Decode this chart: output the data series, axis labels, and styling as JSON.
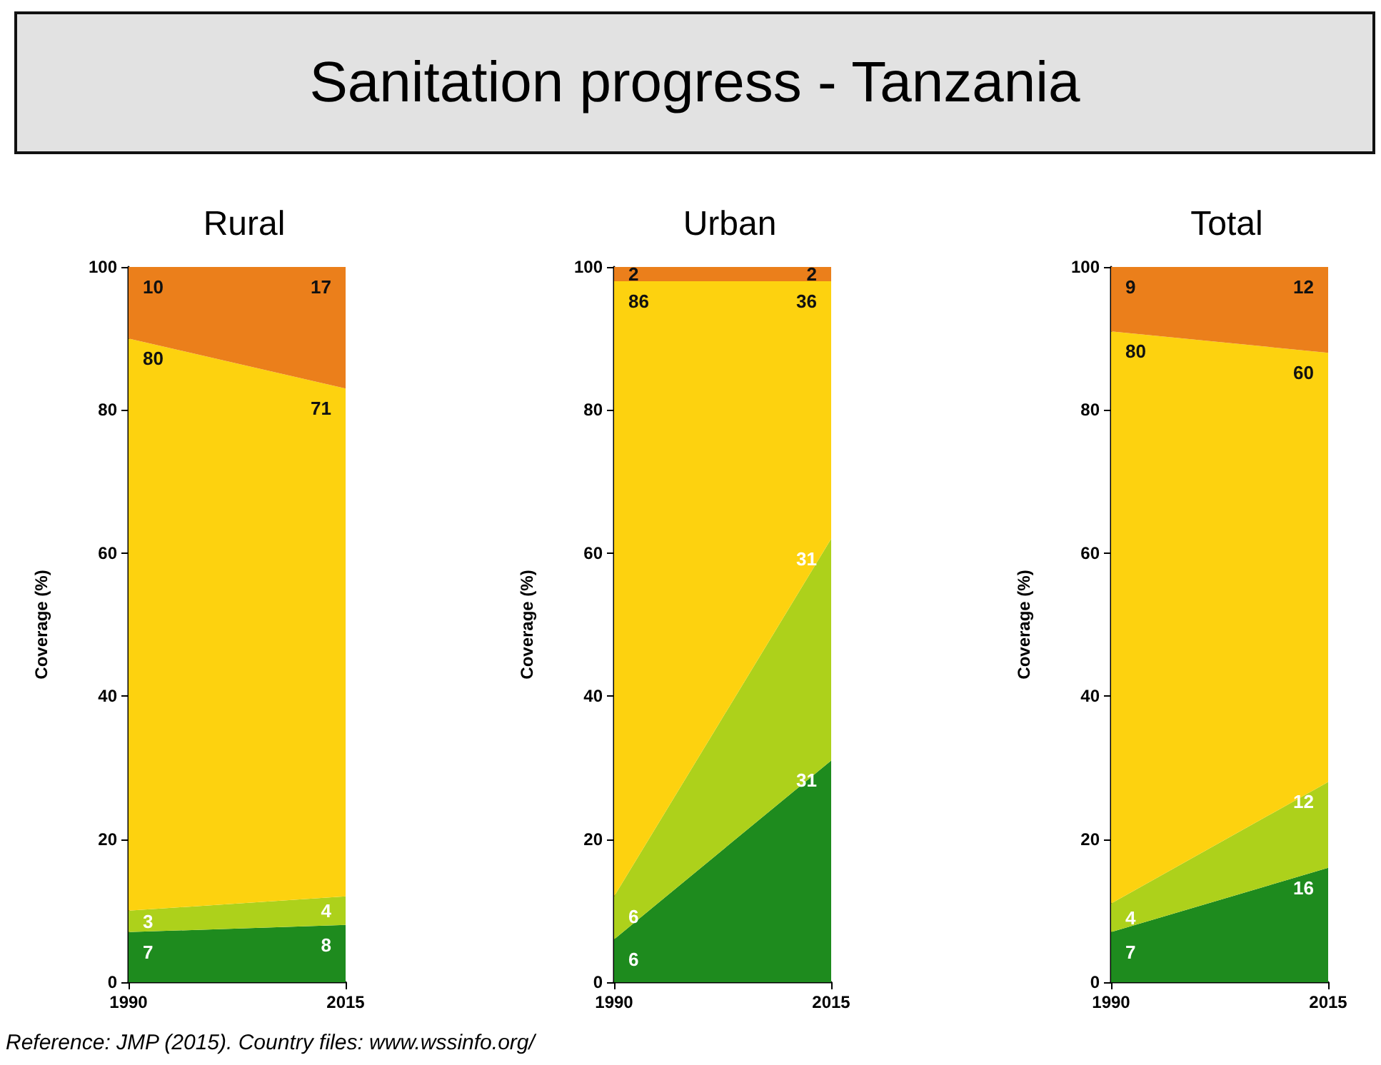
{
  "chart_data": [
    {
      "type": "other",
      "title": "Sanitation progress - Tanzania"
    },
    {
      "type": "area",
      "subtitle": "Rural",
      "ylabel": "Coverage (%)",
      "categories": [
        "1990",
        "2015"
      ],
      "stacked": true,
      "data_labels": true,
      "grid": false,
      "ylim": [
        0,
        100
      ],
      "yticks": [
        0,
        20,
        40,
        60,
        80,
        100
      ],
      "annotations": [
        "Reference: JMP (2015). Country files: www.wssinfo.org/"
      ],
      "series": [
        {
          "color": "#1e8b1e",
          "values": [
            7,
            8
          ]
        },
        {
          "color": "#add11b",
          "values": [
            3,
            4
          ]
        },
        {
          "color": "#fdd20f",
          "values": [
            80,
            71
          ]
        },
        {
          "color": "#eb7f1b",
          "values": [
            10,
            17
          ]
        }
      ]
    },
    {
      "type": "area",
      "subtitle": "Urban",
      "ylabel": "Coverage (%)",
      "categories": [
        "1990",
        "2015"
      ],
      "stacked": true,
      "data_labels": true,
      "grid": false,
      "ylim": [
        0,
        100
      ],
      "yticks": [
        0,
        20,
        40,
        60,
        80,
        100
      ],
      "series": [
        {
          "color": "#1e8b1e",
          "values": [
            6,
            31
          ]
        },
        {
          "color": "#add11b",
          "values": [
            6,
            31
          ]
        },
        {
          "color": "#fdd20f",
          "values": [
            86,
            36
          ]
        },
        {
          "color": "#eb7f1b",
          "values": [
            2,
            2
          ]
        }
      ]
    },
    {
      "type": "area",
      "subtitle": "Total",
      "ylabel": "Coverage (%)",
      "categories": [
        "1990",
        "2015"
      ],
      "stacked": true,
      "data_labels": true,
      "grid": false,
      "ylim": [
        0,
        100
      ],
      "yticks": [
        0,
        20,
        40,
        60,
        80,
        100
      ],
      "series": [
        {
          "color": "#1e8b1e",
          "values": [
            7,
            16
          ]
        },
        {
          "color": "#add11b",
          "values": [
            4,
            12
          ]
        },
        {
          "color": "#fdd20f",
          "values": [
            80,
            60
          ]
        },
        {
          "color": "#eb7f1b",
          "values": [
            9,
            12
          ]
        }
      ]
    }
  ]
}
